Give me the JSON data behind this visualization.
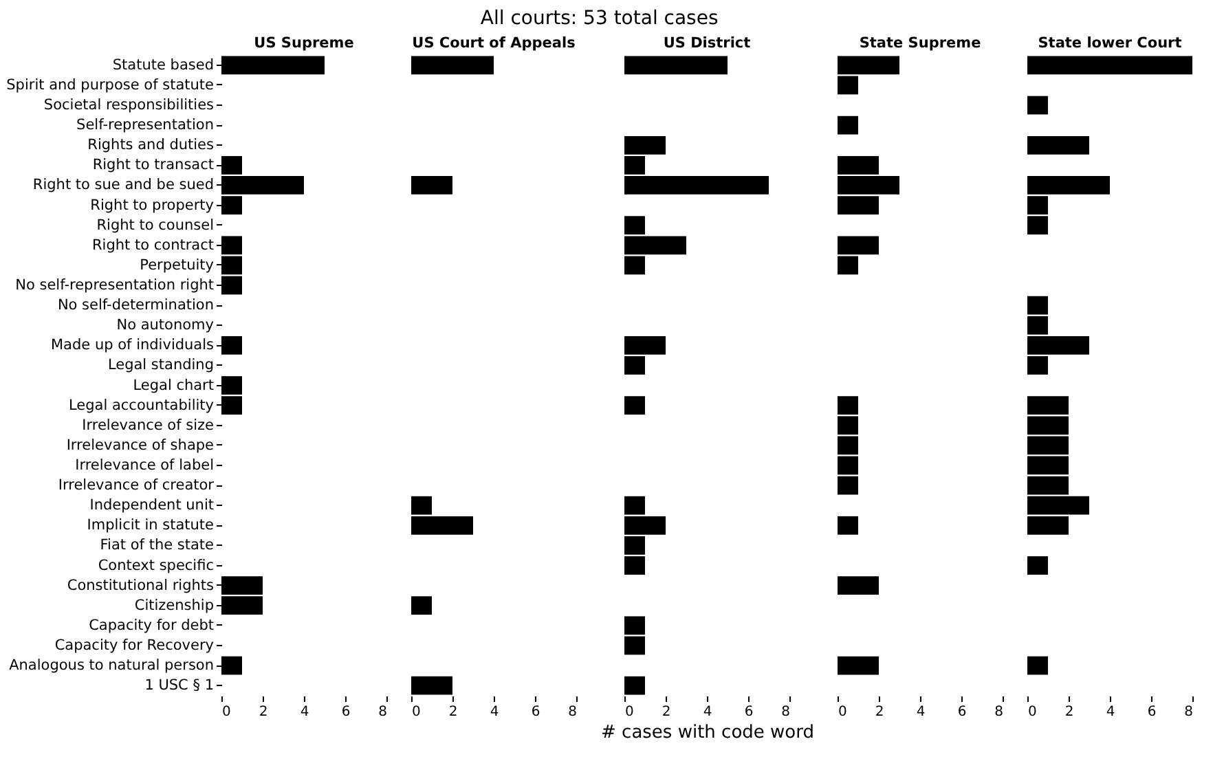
{
  "chart_data": [
    {
      "type": "bar",
      "orientation": "horizontal",
      "title": "US Supreme",
      "annotations": [
        "All courts: 53 total cases"
      ],
      "categories": [
        "Statute based",
        "Spirit and purpose of statute",
        "Societal responsibilities",
        "Self-representation",
        "Rights and duties",
        "Right to transact",
        "Right to sue and be sued",
        "Right to property",
        "Right to counsel",
        "Right to contract",
        "Perpetuity",
        "No self-representation right",
        "No self-determination",
        "No autonomy",
        "Made up of individuals",
        "Legal standing",
        "Legal chart",
        "Legal accountability",
        "Irrelevance of size",
        "Irrelevance of shape",
        "Irrelevance of label",
        "Irrelevance of creator",
        "Independent unit",
        "Implicit in statute",
        "Fiat of the state",
        "Context specific",
        "Constitutional rights",
        "Citizenship",
        "Capacity for debt",
        "Capacity for Recovery",
        "Analogous to natural person",
        "1 USC § 1"
      ],
      "values": [
        5,
        0,
        0,
        0,
        0,
        1,
        4,
        1,
        0,
        1,
        1,
        1,
        0,
        0,
        1,
        0,
        1,
        1,
        0,
        0,
        0,
        0,
        0,
        0,
        0,
        0,
        2,
        2,
        0,
        0,
        1,
        0
      ],
      "color": "#000000",
      "xlim": [
        0,
        8
      ],
      "xticks": [
        0,
        2,
        4,
        6,
        8
      ],
      "grid": false
    },
    {
      "type": "bar",
      "orientation": "horizontal",
      "title": "US Court of Appeals",
      "categories": [
        null,
        null,
        null,
        null,
        null,
        null,
        null,
        null,
        null,
        null,
        null,
        null,
        null,
        null,
        null,
        null,
        null,
        null,
        null,
        null,
        null,
        null,
        null,
        null,
        null,
        null,
        null,
        null,
        null,
        null,
        null,
        null
      ],
      "values": [
        4,
        0,
        0,
        0,
        0,
        0,
        2,
        0,
        0,
        0,
        0,
        0,
        0,
        0,
        0,
        0,
        0,
        0,
        0,
        0,
        0,
        0,
        1,
        3,
        0,
        0,
        0,
        1,
        0,
        0,
        0,
        2
      ],
      "color": "#000000",
      "xlim": [
        0,
        8
      ],
      "xticks": [
        0,
        2,
        4,
        6,
        8
      ],
      "grid": false,
      "tick_labels": "x"
    },
    {
      "type": "bar",
      "orientation": "horizontal",
      "title": "US District",
      "xlabel": "# cases with code word",
      "categories": [
        null,
        null,
        null,
        null,
        null,
        null,
        null,
        null,
        null,
        null,
        null,
        null,
        null,
        null,
        null,
        null,
        null,
        null,
        null,
        null,
        null,
        null,
        null,
        null,
        null,
        null,
        null,
        null,
        null,
        null,
        null,
        null
      ],
      "values": [
        5,
        0,
        0,
        0,
        2,
        1,
        7,
        0,
        1,
        3,
        1,
        0,
        0,
        0,
        2,
        1,
        0,
        1,
        0,
        0,
        0,
        0,
        1,
        2,
        1,
        1,
        0,
        0,
        1,
        1,
        0,
        1
      ],
      "color": "#000000",
      "xlim": [
        0,
        8
      ],
      "xticks": [
        0,
        2,
        4,
        6,
        8
      ],
      "grid": false,
      "tick_labels": "x"
    },
    {
      "type": "bar",
      "orientation": "horizontal",
      "title": "State Supreme",
      "categories": [
        null,
        null,
        null,
        null,
        null,
        null,
        null,
        null,
        null,
        null,
        null,
        null,
        null,
        null,
        null,
        null,
        null,
        null,
        null,
        null,
        null,
        null,
        null,
        null,
        null,
        null,
        null,
        null,
        null,
        null,
        null,
        null
      ],
      "values": [
        3,
        1,
        0,
        1,
        0,
        2,
        3,
        2,
        0,
        2,
        1,
        0,
        0,
        0,
        0,
        0,
        0,
        1,
        1,
        1,
        1,
        1,
        0,
        1,
        0,
        0,
        2,
        0,
        0,
        0,
        2,
        0
      ],
      "color": "#000000",
      "xlim": [
        0,
        8
      ],
      "xticks": [
        0,
        2,
        4,
        6,
        8
      ],
      "grid": false,
      "tick_labels": "x"
    },
    {
      "type": "bar",
      "orientation": "horizontal",
      "title": "State lower Court",
      "categories": [
        null,
        null,
        null,
        null,
        null,
        null,
        null,
        null,
        null,
        null,
        null,
        null,
        null,
        null,
        null,
        null,
        null,
        null,
        null,
        null,
        null,
        null,
        null,
        null,
        null,
        null,
        null,
        null,
        null,
        null,
        null,
        null
      ],
      "values": [
        8,
        0,
        1,
        0,
        3,
        0,
        4,
        1,
        1,
        0,
        0,
        0,
        1,
        1,
        3,
        1,
        0,
        2,
        2,
        2,
        2,
        2,
        3,
        2,
        0,
        1,
        0,
        0,
        0,
        0,
        1,
        0
      ],
      "color": "#000000",
      "xlim": [
        0,
        8
      ],
      "xticks": [
        0,
        2,
        4,
        6,
        8
      ],
      "grid": false,
      "tick_labels": "x"
    }
  ]
}
